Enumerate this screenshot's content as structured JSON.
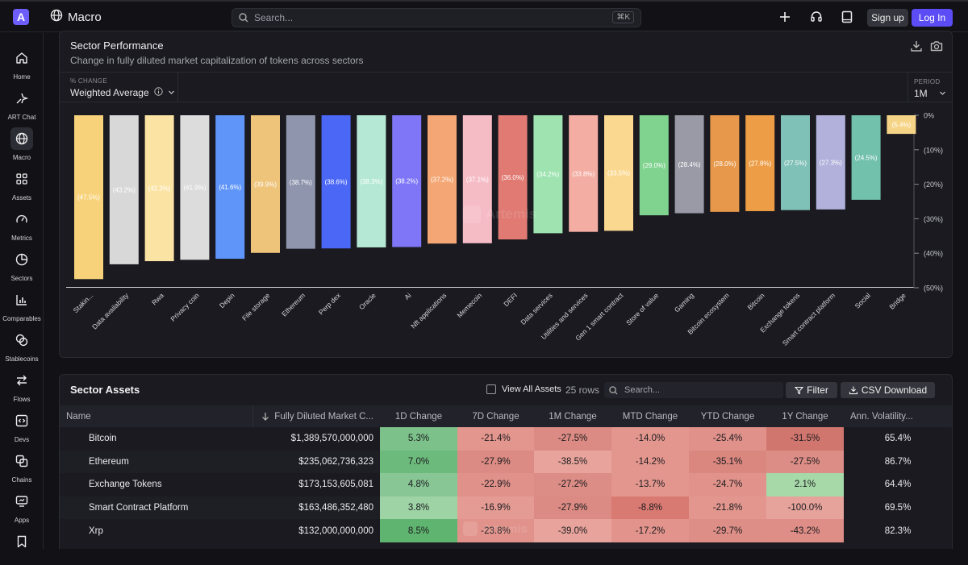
{
  "app": {
    "page_title": "Macro",
    "logo_letter": "A"
  },
  "search": {
    "placeholder": "Search...",
    "shortcut": "⌘K"
  },
  "auth": {
    "signup": "Sign up",
    "login": "Log In"
  },
  "sidebar": {
    "items": [
      {
        "label": "Home",
        "icon": "home-icon"
      },
      {
        "label": "ART Chat",
        "icon": "sparkle-chat-icon"
      },
      {
        "label": "Macro",
        "icon": "globe-icon",
        "active": true
      },
      {
        "label": "Assets",
        "icon": "grid-icon"
      },
      {
        "label": "Metrics",
        "icon": "gauge-icon"
      },
      {
        "label": "Sectors",
        "icon": "pie-icon"
      },
      {
        "label": "Comparables",
        "icon": "bar-chart-icon"
      },
      {
        "label": "Stablecoins",
        "icon": "coins-icon"
      },
      {
        "label": "Flows",
        "icon": "arrows-icon"
      },
      {
        "label": "Devs",
        "icon": "code-icon"
      },
      {
        "label": "Chains",
        "icon": "layers-icon"
      },
      {
        "label": "Apps",
        "icon": "monitor-icon"
      },
      {
        "label": "",
        "icon": "bookmark-icon"
      }
    ]
  },
  "sector_performance": {
    "title": "Sector Performance",
    "subtitle": "Change in fully diluted market capitalization of tokens across sectors",
    "metric_label": "% CHANGE",
    "metric_value": "Weighted Average",
    "period_label": "PERIOD",
    "period_value": "1M",
    "watermark": "Artemis"
  },
  "chart_data": {
    "type": "bar",
    "categories": [
      "Stakin...",
      "Data availability",
      "Rwa",
      "Privacy coin",
      "Depin",
      "File storage",
      "Ethereum",
      "Perp dex",
      "Oracle",
      "Ai",
      "Nft applications",
      "Memecoin",
      "DEFI",
      "Data services",
      "Utilities and services",
      "Gen 1 smart contract",
      "Store of value",
      "Gaming",
      "Bitcoin ecosystem",
      "Bitcoin",
      "Exchange tokens",
      "Smart contract platform",
      "Social",
      "Bridge"
    ],
    "values": [
      -47.5,
      -43.2,
      -42.3,
      -41.9,
      -41.6,
      -39.9,
      -38.7,
      -38.6,
      -38.3,
      -38.2,
      -37.2,
      -37.1,
      -36.0,
      -34.2,
      -33.8,
      -33.5,
      -29.0,
      -28.4,
      -28.0,
      -27.8,
      -27.5,
      -27.3,
      -24.5,
      -5.4
    ],
    "data_labels": [
      "(47.5%)",
      "(43.2%)",
      "(42.3%)",
      "(41.9%)",
      "(41.6%)",
      "(39.9%)",
      "(38.7%)",
      "(38.6%)",
      "(38.3%)",
      "(38.2%)",
      "(37.2%)",
      "(37.1%)",
      "(36.0%)",
      "(34.2%)",
      "(33.8%)",
      "(33.5%)",
      "(29.0%)",
      "(28.4%)",
      "(28.0%)",
      "(27.8%)",
      "(27.5%)",
      "(27.3%)",
      "(24.5%)",
      "(5.4%)"
    ],
    "colors": [
      "#f8d27a",
      "#d8d8d8",
      "#fbe3a3",
      "#dcdcdc",
      "#5f95f9",
      "#eec37a",
      "#8f95ad",
      "#4a67f6",
      "#b6e9d5",
      "#7e76f7",
      "#f4a774",
      "#f6bcc6",
      "#e07a72",
      "#9ee3b0",
      "#f3ada3",
      "#fbd890",
      "#7fd38e",
      "#9a9aa6",
      "#e8984a",
      "#ec9d45",
      "#7fc0b7",
      "#b1b1db",
      "#72c1ad",
      "#f6d487"
    ],
    "ylim": [
      -50,
      0
    ],
    "yticks": [
      0,
      -10,
      -20,
      -30,
      -40,
      -50
    ],
    "ytick_labels": [
      "0%",
      "(10%)",
      "(20%)",
      "(30%)",
      "(40%)",
      "(50%)"
    ],
    "grid": true
  },
  "sector_assets": {
    "title": "Sector Assets",
    "view_all": "View All Assets",
    "rows_count": "25 rows",
    "search_placeholder": "Search...",
    "filter": "Filter",
    "csv": "CSV Download",
    "columns": [
      "Name",
      "Fully Diluted Market C...",
      "1D Change",
      "7D Change",
      "1M Change",
      "MTD Change",
      "YTD Change",
      "1Y Change",
      "Ann. Volatility..."
    ],
    "rows": [
      {
        "name": "Bitcoin",
        "fdmc": "$1,389,570,000,000",
        "d1": "5.3%",
        "d7": "-21.4%",
        "m1": "-27.5%",
        "mtd": "-14.0%",
        "ytd": "-25.4%",
        "y1": "-31.5%",
        "vol": "65.4%",
        "colors": [
          "#7cc189",
          "#e3968e",
          "#db8b83",
          "#e3968e",
          "#e0918a",
          "#d1766e",
          "#1a1a20"
        ]
      },
      {
        "name": "Ethereum",
        "fdmc": "$235,062,736,323",
        "d1": "7.0%",
        "d7": "-27.9%",
        "m1": "-38.5%",
        "mtd": "-14.2%",
        "ytd": "-35.1%",
        "y1": "-27.5%",
        "vol": "86.7%",
        "colors": [
          "#6dbb7c",
          "#db8b83",
          "#e8a49c",
          "#e3968e",
          "#d9877f",
          "#dc8d85",
          "#1a1a20"
        ]
      },
      {
        "name": "Exchange Tokens",
        "fdmc": "$173,153,605,081",
        "d1": "4.8%",
        "d7": "-22.9%",
        "m1": "-27.2%",
        "mtd": "-13.7%",
        "ytd": "-24.7%",
        "y1": "2.1%",
        "vol": "64.4%",
        "colors": [
          "#88c795",
          "#e0918a",
          "#dc8d85",
          "#e3968e",
          "#e1938b",
          "#a7d9a8",
          "#1a1a20"
        ]
      },
      {
        "name": "Smart Contract Platform",
        "fdmc": "$163,486,352,480",
        "d1": "3.8%",
        "d7": "-16.9%",
        "m1": "-27.9%",
        "mtd": "-8.8%",
        "ytd": "-21.8%",
        "y1": "-100.0%",
        "vol": "69.5%",
        "colors": [
          "#9dd3a5",
          "#e49b93",
          "#db8b83",
          "#d97a72",
          "#e2968e",
          "#e6a39b",
          "#1a1a20"
        ]
      },
      {
        "name": "Xrp",
        "fdmc": "$132,000,000,000",
        "d1": "8.5%",
        "d7": "-23.8%",
        "m1": "-39.0%",
        "mtd": "-17.2%",
        "ytd": "-29.7%",
        "y1": "-43.2%",
        "vol": "82.3%",
        "colors": [
          "#5fb46f",
          "#e1938b",
          "#e8a49c",
          "#e2948c",
          "#dd8e86",
          "#de8e86",
          "#1a1a20"
        ]
      }
    ]
  }
}
